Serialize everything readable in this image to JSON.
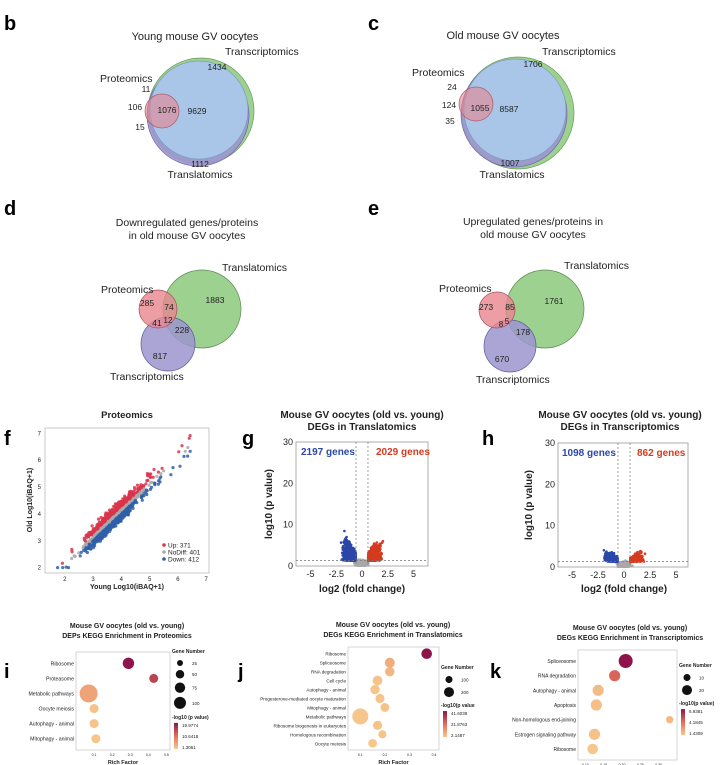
{
  "panels": {
    "b": {
      "letter": "b",
      "title": "Young mouse GV oocytes",
      "sets": [
        "Proteomics",
        "Transcriptomics",
        "Translatomics"
      ],
      "values": {
        "transcriptomics_only": "1434",
        "proteomics_transcriptomics": "11",
        "proteomics_only": "106",
        "all_three": "1076",
        "transcriptomics_translatomics": "9629",
        "proteomics_translatomics": "15",
        "translatomics_only": "1112"
      }
    },
    "c": {
      "letter": "c",
      "title": "Old mouse GV oocytes",
      "sets": [
        "Proteomics",
        "Transcriptomics",
        "Translatomics"
      ],
      "values": {
        "transcriptomics_only": "1706",
        "proteomics_transcriptomics": "24",
        "proteomics_only": "124",
        "all_three": "1055",
        "transcriptomics_translatomics": "8587",
        "proteomics_translatomics": "35",
        "translatomics_only": "1007"
      }
    },
    "d": {
      "letter": "d",
      "title": [
        "Downregulated genes/proteins",
        "in old mouse GV oocytes"
      ],
      "sets": [
        "Proteomics",
        "Translatomics",
        "Transcriptomics"
      ],
      "values": {
        "proteomics_only": "285",
        "proteomics_translatomics": "74",
        "translatomics_only": "1883",
        "all_three": "12",
        "proteomics_transcriptomics": "41",
        "translatomics_transcriptomics": "228",
        "transcriptomics_only": "817"
      }
    },
    "e": {
      "letter": "e",
      "title": [
        "Upregulated genes/proteins in",
        "old mouse GV oocytes"
      ],
      "sets": [
        "Proteomics",
        "Translatomics",
        "Transcriptomics"
      ],
      "values": {
        "proteomics_only": "273",
        "proteomics_translatomics": "85",
        "translatomics_only": "1761",
        "proteomics_transcriptomics": "8",
        "all_three": "5",
        "translatomics_transcriptomics": "178",
        "transcriptomics_only": "670"
      }
    },
    "f": {
      "letter": "f"
    },
    "g": {
      "letter": "g"
    },
    "h": {
      "letter": "h"
    },
    "i": {
      "letter": "i"
    },
    "j": {
      "letter": "j"
    },
    "k": {
      "letter": "k"
    }
  },
  "colors": {
    "proteomics": "#e8868f",
    "transcriptomics": "#8cc97c",
    "translatomics": "#9c95cf",
    "overlap_blue": "#a9c6e8",
    "up": "#d9344a",
    "down": "#2f5fa8",
    "nodiff": "#a8a8a8",
    "volcano_up": "#d63a1f",
    "volcano_down": "#2b47a8"
  },
  "chart_data": [
    {
      "type": "scatter",
      "title": "Proteomics",
      "xlabel": "Young Log10(iBAQ+1)",
      "ylabel": "Old Log10(iBAQ+1)",
      "xlim": [
        1.3,
        7.1
      ],
      "ylim": [
        1.8,
        7.2
      ],
      "xticks": [
        "2",
        "3",
        "4",
        "5",
        "6",
        "7"
      ],
      "yticks": [
        "2",
        "3",
        "4",
        "5",
        "6",
        "7"
      ],
      "legend": [
        "Up: 371",
        "NoDiff: 401",
        "Down: 412"
      ],
      "legend_position": "bottom-right",
      "series": [
        {
          "name": "Up",
          "count": 371
        },
        {
          "name": "NoDiff",
          "count": 401
        },
        {
          "name": "Down",
          "count": 412
        }
      ]
    },
    {
      "type": "scatter",
      "title": [
        "Mouse GV oocytes (old vs. young)",
        "DEGs in Translatomics"
      ],
      "xlabel": "log2 (fold change)",
      "ylabel": "log10 (p value)",
      "xlim": [
        -6.5,
        6
      ],
      "ylim": [
        0,
        30
      ],
      "xticks": [
        "-5",
        "-2.5",
        "0",
        "2.5",
        "5"
      ],
      "yticks": [
        "0",
        "10",
        "20",
        "30"
      ],
      "annotations": [
        "2197 genes",
        "2029 genes"
      ],
      "thresholds": {
        "log2fc": [
          -0.58,
          0.58
        ],
        "p": 1.3
      }
    },
    {
      "type": "scatter",
      "title": [
        "Mouse GV oocytes (old vs. young)",
        "DEGs in Transcriptomics"
      ],
      "xlabel": "log2 (fold change)",
      "ylabel": "log10 (p value)",
      "xlim": [
        -6.5,
        6
      ],
      "ylim": [
        0,
        30
      ],
      "xticks": [
        "-5",
        "-2.5",
        "0",
        "2.5",
        "5"
      ],
      "yticks": [
        "0",
        "10",
        "20",
        "30"
      ],
      "annotations": [
        "1098 genes",
        "862 genes"
      ],
      "thresholds": {
        "log2fc": [
          -0.58,
          0.58
        ],
        "p": 1.3
      }
    },
    {
      "type": "scatter",
      "subtype": "bubble",
      "title": [
        "Mouse GV oocytes (old vs. young)",
        "DEPs KEGG Enrichment in Proteomics"
      ],
      "xlabel": "Rich Factor",
      "xticks": [
        "0.1",
        "0.2",
        "0.3",
        "0.4",
        "0.5"
      ],
      "xlim": [
        0.0,
        0.52
      ],
      "size_legend_title": "Gene Number",
      "size_legend": [
        "25",
        "50",
        "75",
        "100"
      ],
      "color_legend_title": "-log10 (p value)",
      "color_legend": [
        "19.9774",
        "10.6418",
        "1.3061"
      ],
      "color_range": [
        1.3061,
        19.9774
      ],
      "terms": [
        {
          "name": "Ribosome",
          "rich": 0.29,
          "genes": 40,
          "logp": 19.9
        },
        {
          "name": "Proteasome",
          "rich": 0.43,
          "genes": 25,
          "logp": 15
        },
        {
          "name": "Metabolic pathways",
          "rich": 0.07,
          "genes": 100,
          "logp": 5
        },
        {
          "name": "Oocyte meiosis",
          "rich": 0.1,
          "genes": 25,
          "logp": 2
        },
        {
          "name": "Autophagy - animal",
          "rich": 0.1,
          "genes": 25,
          "logp": 1.8
        },
        {
          "name": "Mitophagy - animal",
          "rich": 0.11,
          "genes": 25,
          "logp": 1.6
        }
      ]
    },
    {
      "type": "scatter",
      "subtype": "bubble",
      "title": [
        "Mouse GV oocytes (old vs. young)",
        "DEGs KEGG Enrichment in Translatomics"
      ],
      "xlabel": "Rich Factor",
      "xticks": [
        "0.1",
        "0.2",
        "0.3",
        "0.4"
      ],
      "xlim": [
        0.05,
        0.42
      ],
      "size_legend_title": "Gene Number",
      "size_legend": [
        "100",
        "200"
      ],
      "color_legend_title": "-log10(p value",
      "color_legend": [
        "41.6039",
        "21.8763",
        "2.1487"
      ],
      "color_range": [
        2.1487,
        41.6039
      ],
      "terms": [
        {
          "name": "Ribosome",
          "rich": 0.37,
          "genes": 100,
          "logp": 41.6
        },
        {
          "name": "Spliceosome",
          "rich": 0.22,
          "genes": 90,
          "logp": 8
        },
        {
          "name": "RNA degradation",
          "rich": 0.22,
          "genes": 80,
          "logp": 6
        },
        {
          "name": "Cell cycle",
          "rich": 0.17,
          "genes": 85,
          "logp": 3
        },
        {
          "name": "Autophagy - animal",
          "rich": 0.16,
          "genes": 80,
          "logp": 2.8
        },
        {
          "name": "Progesterone-mediated oocyte maturation",
          "rich": 0.18,
          "genes": 75,
          "logp": 3
        },
        {
          "name": "Mitophagy - animal",
          "rich": 0.2,
          "genes": 70,
          "logp": 3.5
        },
        {
          "name": "Metabolic pathways",
          "rich": 0.1,
          "genes": 230,
          "logp": 2.5
        },
        {
          "name": "Ribosome biogenesis in eukaryotes",
          "rich": 0.17,
          "genes": 75,
          "logp": 3.2
        },
        {
          "name": "Homologous recombination",
          "rich": 0.19,
          "genes": 60,
          "logp": 3
        },
        {
          "name": "Oocyte meiosis",
          "rich": 0.15,
          "genes": 70,
          "logp": 2.4
        }
      ]
    },
    {
      "type": "scatter",
      "subtype": "bubble",
      "title": [
        "Mouse GV oocytes (old vs. young)",
        "DEGs KEGG Enrichment in Transcriptomics"
      ],
      "xlabel": "Rich Factor",
      "xticks": [
        "0.10",
        "0.15",
        "0.20",
        "0.25",
        "0.30"
      ],
      "xlim": [
        0.08,
        0.35
      ],
      "size_legend_title": "Gene Number",
      "size_legend": [
        "10",
        "20"
      ],
      "color_legend_title": "-log10(p value)",
      "color_legend": [
        "6.9381",
        "4.1845",
        "1.4309"
      ],
      "color_range": [
        1.4309,
        6.9381
      ],
      "terms": [
        {
          "name": "Spliceosome",
          "rich": 0.21,
          "genes": 28,
          "logp": 6.9
        },
        {
          "name": "RNA degradation",
          "rich": 0.18,
          "genes": 18,
          "logp": 4.5
        },
        {
          "name": "Autophagy - animal",
          "rich": 0.135,
          "genes": 18,
          "logp": 1.8
        },
        {
          "name": "Apoptosis",
          "rich": 0.13,
          "genes": 18,
          "logp": 1.7
        },
        {
          "name": "Non-homologous end-joining",
          "rich": 0.33,
          "genes": 8,
          "logp": 1.9
        },
        {
          "name": "Estrogen signaling pathway",
          "rich": 0.125,
          "genes": 18,
          "logp": 1.6
        },
        {
          "name": "Ribosome",
          "rich": 0.12,
          "genes": 16,
          "logp": 1.5
        }
      ]
    }
  ]
}
